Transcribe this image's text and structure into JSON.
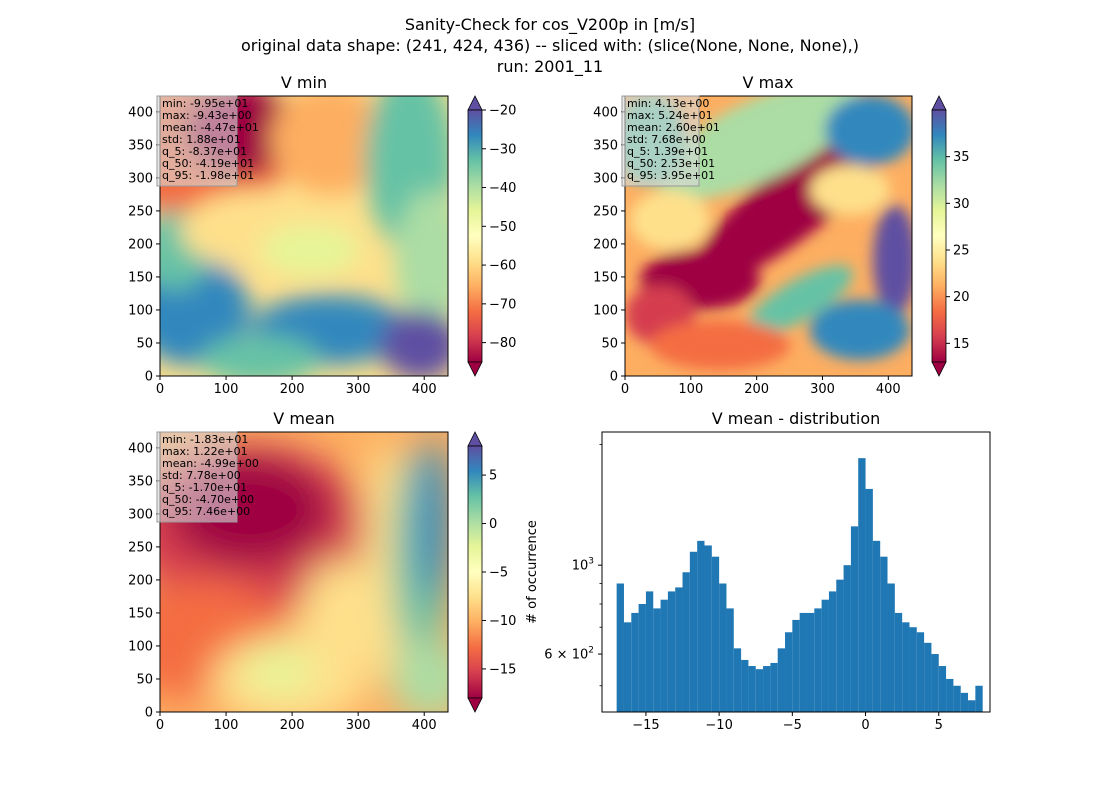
{
  "figure": {
    "title_lines": [
      "Sanity-Check for cos_V200p in [m/s]",
      "original data shape: (241, 424, 436) -- sliced with: (slice(None, None, None),)",
      "run: 2001_11"
    ]
  },
  "colormap": "Spectral",
  "chart_data": [
    {
      "type": "heatmap",
      "title": "V min",
      "xlim": [
        0,
        436
      ],
      "ylim": [
        0,
        424
      ],
      "xticks": [
        "0",
        "100",
        "200",
        "300",
        "400"
      ],
      "yticks": [
        "0",
        "50",
        "100",
        "150",
        "200",
        "250",
        "300",
        "350",
        "400"
      ],
      "colorbar": {
        "range": [
          -85,
          -20
        ],
        "ticks": [
          "-80",
          "-70",
          "-60",
          "-50",
          "-40",
          "-30",
          "-20"
        ],
        "extend": "both"
      },
      "stats": [
        "min: -9.95e+01",
        "max: -9.43e+00",
        "mean: -4.47e+01",
        "std: 1.88e+01",
        "q_5: -8.37e+01",
        "q_50: -4.19e+01",
        "q_95: -1.98e+01"
      ]
    },
    {
      "type": "heatmap",
      "title": "V max",
      "xlim": [
        0,
        436
      ],
      "ylim": [
        0,
        424
      ],
      "xticks": [
        "0",
        "100",
        "200",
        "300",
        "400"
      ],
      "yticks": [
        "0",
        "50",
        "100",
        "150",
        "200",
        "250",
        "300",
        "350",
        "400"
      ],
      "colorbar": {
        "range": [
          13,
          40
        ],
        "ticks": [
          "15",
          "20",
          "25",
          "30",
          "35"
        ],
        "extend": "both"
      },
      "stats": [
        "min: 4.13e+00",
        "max: 5.24e+01",
        "mean: 2.60e+01",
        "std: 7.68e+00",
        "q_5: 1.39e+01",
        "q_50: 2.53e+01",
        "q_95: 3.95e+01"
      ]
    },
    {
      "type": "heatmap",
      "title": "V mean",
      "xlim": [
        0,
        436
      ],
      "ylim": [
        0,
        424
      ],
      "xticks": [
        "0",
        "100",
        "200",
        "300",
        "400"
      ],
      "yticks": [
        "0",
        "50",
        "100",
        "150",
        "200",
        "250",
        "300",
        "350",
        "400"
      ],
      "colorbar": {
        "range": [
          -18,
          8
        ],
        "ticks": [
          "-15",
          "-10",
          "-5",
          "0",
          "5"
        ],
        "extend": "both"
      },
      "stats": [
        "min: -1.83e+01",
        "max: 1.22e+01",
        "mean: -4.99e+00",
        "std: 7.78e+00",
        "q_5: -1.70e+01",
        "q_50: -4.70e+00",
        "q_95: 7.46e+00"
      ]
    },
    {
      "type": "bar",
      "title": "V mean - distribution",
      "ylabel": "# of occurrence",
      "yscale": "log",
      "xlim": [
        -18,
        8.5
      ],
      "ylim": [
        430,
        2150
      ],
      "xticks": [
        {
          "value": -15,
          "label": "−15"
        },
        {
          "value": -10,
          "label": "−10"
        },
        {
          "value": -5,
          "label": "−5"
        },
        {
          "value": 0,
          "label": "0"
        },
        {
          "value": 5,
          "label": "5"
        }
      ],
      "yticks": [
        {
          "value": 1000,
          "label": "10",
          "sup": "3"
        },
        {
          "value": 600,
          "label": "6 × 10",
          "sup": "2"
        }
      ],
      "bar_color": "#1f77b4",
      "bins": [
        -17,
        -16.5,
        -16,
        -15.5,
        -15,
        -14.5,
        -14,
        -13.5,
        -13,
        -12.5,
        -12,
        -11.5,
        -11,
        -10.5,
        -10,
        -9.5,
        -9,
        -8.5,
        -8,
        -7.5,
        -7,
        -6.5,
        -6,
        -5.5,
        -5,
        -4.5,
        -4,
        -3.5,
        -3,
        -2.5,
        -2,
        -1.5,
        -1,
        -0.5,
        0,
        0.5,
        1,
        1.5,
        2,
        2.5,
        3,
        3.5,
        4,
        4.5,
        5,
        5.5,
        6,
        6.5,
        7,
        7.5
      ],
      "counts": [
        900,
        720,
        760,
        800,
        860,
        780,
        820,
        860,
        880,
        960,
        1080,
        1150,
        1120,
        1050,
        900,
        780,
        620,
        580,
        560,
        550,
        560,
        570,
        620,
        680,
        730,
        760,
        760,
        780,
        820,
        860,
        920,
        1000,
        1250,
        1850,
        1550,
        1150,
        1050,
        900,
        760,
        720,
        700,
        680,
        640,
        600,
        560,
        520,
        500,
        480,
        460,
        500
      ]
    }
  ]
}
